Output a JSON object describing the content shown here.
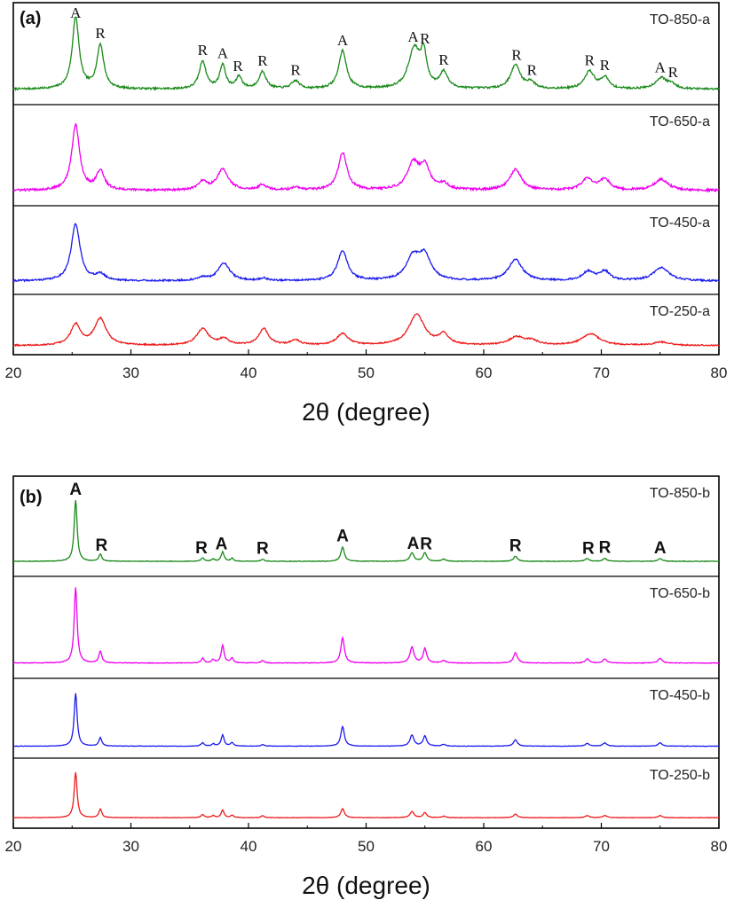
{
  "chart_data": [
    {
      "type": "line",
      "panel_label": "(a)",
      "xlabel": "2θ (degree)",
      "xlim": [
        20,
        80
      ],
      "x_ticks": [
        20,
        30,
        40,
        50,
        60,
        70,
        80
      ],
      "y_ticks_shown": false,
      "stacked": true,
      "series": [
        {
          "name": "TO-850-a",
          "color": "#1a8a1a",
          "peaks": [
            [
              25.3,
              0.9,
              0.35
            ],
            [
              27.4,
              0.55,
              0.35
            ],
            [
              36.1,
              0.35,
              0.35
            ],
            [
              37.8,
              0.3,
              0.3
            ],
            [
              39.2,
              0.15,
              0.3
            ],
            [
              41.2,
              0.22,
              0.35
            ],
            [
              44.0,
              0.1,
              0.4
            ],
            [
              48.0,
              0.48,
              0.4
            ],
            [
              54.1,
              0.5,
              0.6
            ],
            [
              54.9,
              0.38,
              0.3
            ],
            [
              56.6,
              0.2,
              0.4
            ],
            [
              62.7,
              0.3,
              0.5
            ],
            [
              64.0,
              0.08,
              0.4
            ],
            [
              69.0,
              0.22,
              0.5
            ],
            [
              70.3,
              0.14,
              0.4
            ],
            [
              75.1,
              0.14,
              0.6
            ],
            [
              76.0,
              0.05,
              0.4
            ]
          ],
          "peak_labels": [
            {
              "text": "A",
              "x": 25.3
            },
            {
              "text": "R",
              "x": 27.4
            },
            {
              "text": "R",
              "x": 36.1
            },
            {
              "text": "A",
              "x": 37.8
            },
            {
              "text": "R",
              "x": 39.1
            },
            {
              "text": "R",
              "x": 41.2
            },
            {
              "text": "R",
              "x": 44.0
            },
            {
              "text": "A",
              "x": 48.0
            },
            {
              "text": "A",
              "x": 54.0
            },
            {
              "text": "R",
              "x": 55.0
            },
            {
              "text": "R",
              "x": 56.6
            },
            {
              "text": "R",
              "x": 62.8
            },
            {
              "text": "R",
              "x": 64.1
            },
            {
              "text": "R",
              "x": 69.0
            },
            {
              "text": "R",
              "x": 70.3
            },
            {
              "text": "A",
              "x": 75.0
            },
            {
              "text": "R",
              "x": 76.1
            }
          ]
        },
        {
          "name": "TO-650-a",
          "color": "#ee00ee",
          "peaks": [
            [
              25.3,
              0.95,
              0.4
            ],
            [
              27.4,
              0.28,
              0.4
            ],
            [
              36.1,
              0.12,
              0.4
            ],
            [
              37.8,
              0.3,
              0.6
            ],
            [
              41.2,
              0.08,
              0.4
            ],
            [
              44.0,
              0.04,
              0.4
            ],
            [
              48.0,
              0.55,
              0.45
            ],
            [
              54.0,
              0.38,
              0.6
            ],
            [
              55.0,
              0.32,
              0.5
            ],
            [
              56.6,
              0.08,
              0.5
            ],
            [
              62.7,
              0.3,
              0.6
            ],
            [
              68.8,
              0.16,
              0.6
            ],
            [
              70.3,
              0.16,
              0.5
            ],
            [
              75.1,
              0.16,
              0.7
            ]
          ]
        },
        {
          "name": "TO-450-a",
          "color": "#1a1aee",
          "peaks": [
            [
              25.3,
              0.95,
              0.45
            ],
            [
              27.4,
              0.1,
              0.5
            ],
            [
              36.1,
              0.05,
              0.4
            ],
            [
              37.9,
              0.3,
              0.6
            ],
            [
              41.3,
              0.04,
              0.4
            ],
            [
              48.0,
              0.5,
              0.5
            ],
            [
              54.0,
              0.38,
              0.7
            ],
            [
              55.0,
              0.38,
              0.6
            ],
            [
              62.7,
              0.35,
              0.7
            ],
            [
              68.9,
              0.15,
              0.6
            ],
            [
              70.3,
              0.15,
              0.5
            ],
            [
              75.1,
              0.22,
              0.8
            ]
          ]
        },
        {
          "name": "TO-250-a",
          "color": "#ee1a1a",
          "peaks": [
            [
              25.3,
              0.5,
              0.5
            ],
            [
              27.4,
              0.65,
              0.6
            ],
            [
              36.1,
              0.4,
              0.6
            ],
            [
              37.9,
              0.15,
              0.5
            ],
            [
              41.3,
              0.4,
              0.5
            ],
            [
              44.0,
              0.12,
              0.5
            ],
            [
              48.0,
              0.28,
              0.6
            ],
            [
              54.3,
              0.75,
              0.8
            ],
            [
              56.6,
              0.25,
              0.5
            ],
            [
              62.8,
              0.2,
              0.8
            ],
            [
              64.1,
              0.1,
              0.6
            ],
            [
              69.1,
              0.28,
              0.9
            ],
            [
              75.1,
              0.08,
              0.8
            ]
          ]
        }
      ]
    },
    {
      "type": "line",
      "panel_label": "(b)",
      "xlabel": "2θ (degree)",
      "xlim": [
        20,
        80
      ],
      "x_ticks": [
        20,
        30,
        40,
        50,
        60,
        70,
        80
      ],
      "y_ticks_shown": false,
      "stacked": true,
      "series": [
        {
          "name": "TO-850-b",
          "color": "#1a8a1a",
          "peaks": [
            [
              25.3,
              0.85,
              0.15
            ],
            [
              27.4,
              0.1,
              0.15
            ],
            [
              36.1,
              0.05,
              0.15
            ],
            [
              37.0,
              0.03,
              0.15
            ],
            [
              37.8,
              0.13,
              0.15
            ],
            [
              38.6,
              0.04,
              0.15
            ],
            [
              41.2,
              0.03,
              0.15
            ],
            [
              48.0,
              0.2,
              0.18
            ],
            [
              53.9,
              0.12,
              0.2
            ],
            [
              55.0,
              0.12,
              0.18
            ],
            [
              56.6,
              0.03,
              0.2
            ],
            [
              62.7,
              0.07,
              0.2
            ],
            [
              68.8,
              0.04,
              0.2
            ],
            [
              70.3,
              0.04,
              0.2
            ],
            [
              75.0,
              0.04,
              0.2
            ]
          ],
          "peak_labels": [
            {
              "text": "A",
              "x": 25.3
            },
            {
              "text": "R",
              "x": 27.5
            },
            {
              "text": "R",
              "x": 36.0
            },
            {
              "text": "A",
              "x": 37.7
            },
            {
              "text": "R",
              "x": 41.2
            },
            {
              "text": "A",
              "x": 48.0
            },
            {
              "text": "A",
              "x": 54.0
            },
            {
              "text": "R",
              "x": 55.1
            },
            {
              "text": "R",
              "x": 62.7
            },
            {
              "text": "R",
              "x": 68.9
            },
            {
              "text": "R",
              "x": 70.3
            },
            {
              "text": "A",
              "x": 75.0
            }
          ]
        },
        {
          "name": "TO-650-b",
          "color": "#ee00ee",
          "peaks": [
            [
              25.3,
              0.95,
              0.15
            ],
            [
              27.4,
              0.15,
              0.15
            ],
            [
              36.1,
              0.06,
              0.15
            ],
            [
              37.0,
              0.04,
              0.15
            ],
            [
              37.8,
              0.22,
              0.15
            ],
            [
              38.6,
              0.06,
              0.15
            ],
            [
              41.2,
              0.03,
              0.15
            ],
            [
              48.0,
              0.32,
              0.18
            ],
            [
              53.9,
              0.2,
              0.2
            ],
            [
              55.0,
              0.18,
              0.18
            ],
            [
              56.6,
              0.03,
              0.2
            ],
            [
              62.7,
              0.13,
              0.2
            ],
            [
              68.8,
              0.05,
              0.2
            ],
            [
              70.3,
              0.05,
              0.2
            ],
            [
              75.0,
              0.06,
              0.2
            ]
          ]
        },
        {
          "name": "TO-450-b",
          "color": "#1a1aee",
          "peaks": [
            [
              25.3,
              0.95,
              0.15
            ],
            [
              27.4,
              0.15,
              0.15
            ],
            [
              36.1,
              0.06,
              0.15
            ],
            [
              37.0,
              0.04,
              0.15
            ],
            [
              37.8,
              0.2,
              0.15
            ],
            [
              38.6,
              0.06,
              0.15
            ],
            [
              41.2,
              0.03,
              0.15
            ],
            [
              48.0,
              0.35,
              0.18
            ],
            [
              53.9,
              0.2,
              0.2
            ],
            [
              55.0,
              0.18,
              0.18
            ],
            [
              56.6,
              0.03,
              0.2
            ],
            [
              62.7,
              0.11,
              0.2
            ],
            [
              68.8,
              0.05,
              0.2
            ],
            [
              70.3,
              0.06,
              0.2
            ],
            [
              75.0,
              0.06,
              0.2
            ]
          ]
        },
        {
          "name": "TO-250-b",
          "color": "#ee1a1a",
          "peaks": [
            [
              25.3,
              0.9,
              0.15
            ],
            [
              27.4,
              0.17,
              0.15
            ],
            [
              36.1,
              0.06,
              0.15
            ],
            [
              37.0,
              0.04,
              0.15
            ],
            [
              37.8,
              0.15,
              0.15
            ],
            [
              38.6,
              0.05,
              0.15
            ],
            [
              41.2,
              0.04,
              0.15
            ],
            [
              48.0,
              0.18,
              0.18
            ],
            [
              53.9,
              0.12,
              0.2
            ],
            [
              55.0,
              0.1,
              0.18
            ],
            [
              56.6,
              0.03,
              0.2
            ],
            [
              62.7,
              0.07,
              0.2
            ],
            [
              68.8,
              0.04,
              0.2
            ],
            [
              70.3,
              0.04,
              0.2
            ],
            [
              75.0,
              0.04,
              0.2
            ]
          ]
        }
      ]
    }
  ]
}
